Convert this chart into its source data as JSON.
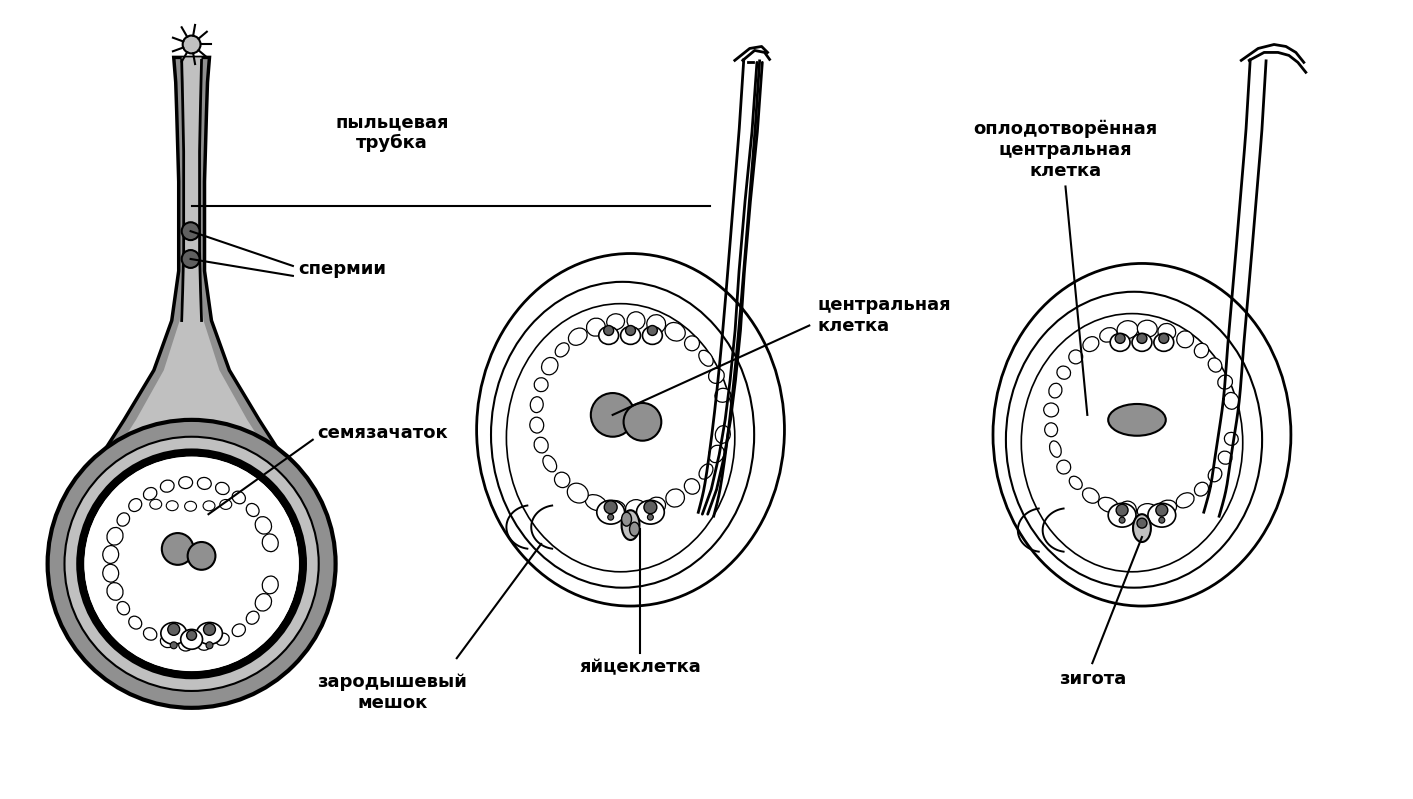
{
  "bg_color": "#ffffff",
  "labels": {
    "pyltsevaya_trubka": "пыльцевая\nтрубка",
    "spermii": "спермии",
    "semyazachatok": "семязачаток",
    "zarodyshevyi_meshok": "зародышевый\nмешок",
    "yaytskletka": "яйцеклетка",
    "tsentralnaya_kletka": "центральная\nклетка",
    "oplodotvorennaya": "оплодотворённая\nцентральная\nклетка",
    "zigota": "зигота"
  },
  "gray_light": "#c0c0c0",
  "gray_mid": "#909090",
  "gray_dark": "#606060",
  "gray_darkest": "#303030",
  "line_color": "#000000",
  "font_size_labels": 13
}
